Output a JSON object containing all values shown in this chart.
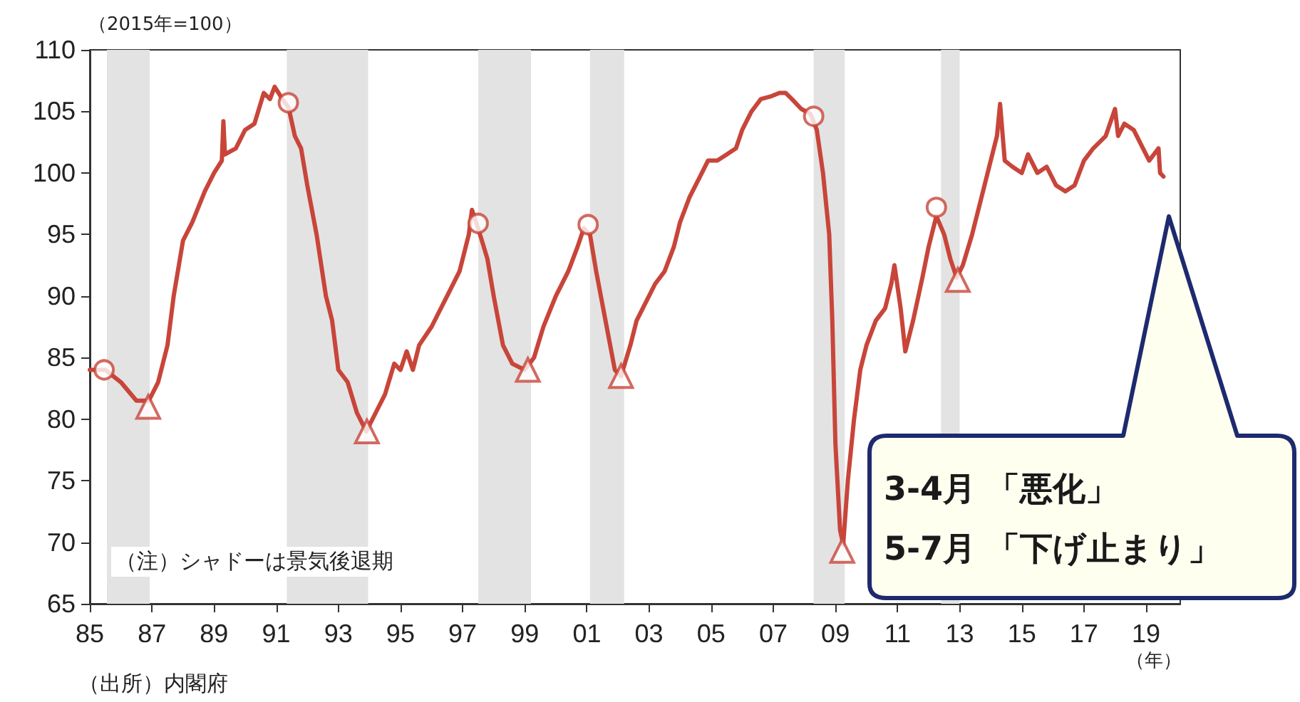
{
  "chart_data": {
    "type": "line",
    "ylabel": "（2015年=100）",
    "xlabel": "（年）",
    "xlim": [
      1985,
      2020.1
    ],
    "xticks": [
      {
        "value": 1985,
        "label": "85"
      },
      {
        "value": 1987,
        "label": "87"
      },
      {
        "value": 1989,
        "label": "89"
      },
      {
        "value": 1991,
        "label": "91"
      },
      {
        "value": 1993,
        "label": "93"
      },
      {
        "value": 1995,
        "label": "95"
      },
      {
        "value": 1997,
        "label": "97"
      },
      {
        "value": 1999,
        "label": "99"
      },
      {
        "value": 2001,
        "label": "01"
      },
      {
        "value": 2003,
        "label": "03"
      },
      {
        "value": 2005,
        "label": "05"
      },
      {
        "value": 2007,
        "label": "07"
      },
      {
        "value": 2009,
        "label": "09"
      },
      {
        "value": 2011,
        "label": "11"
      },
      {
        "value": 2013,
        "label": "13"
      },
      {
        "value": 2015,
        "label": "15"
      },
      {
        "value": 2017,
        "label": "17"
      },
      {
        "value": 2019,
        "label": "19"
      }
    ],
    "ylim": [
      65,
      110
    ],
    "yticks": [
      65,
      70,
      75,
      80,
      85,
      90,
      95,
      100,
      105,
      110
    ],
    "grid": false,
    "series": [
      {
        "color": "#c8453a",
        "marker": "none",
        "x": [
          1985.0,
          1985.5,
          1986.0,
          1986.5,
          1986.9,
          1987.2,
          1987.5,
          1987.7,
          1988.0,
          1988.3,
          1988.7,
          1989.0,
          1989.25,
          1989.3,
          1989.35,
          1989.7,
          1990.0,
          1990.3,
          1990.6,
          1990.8,
          1990.95,
          1991.2,
          1991.4,
          1991.6,
          1991.8,
          1992.0,
          1992.3,
          1992.6,
          1992.8,
          1993.0,
          1993.3,
          1993.6,
          1993.9,
          1994.2,
          1994.5,
          1994.8,
          1995.0,
          1995.2,
          1995.4,
          1995.6,
          1996.0,
          1996.5,
          1996.9,
          1997.2,
          1997.3,
          1997.5,
          1997.8,
          1998.0,
          1998.3,
          1998.6,
          1999.0,
          1999.3,
          1999.6,
          2000.0,
          2000.4,
          2000.7,
          2000.9,
          2001.1,
          2001.3,
          2001.6,
          2001.9,
          2002.1,
          2002.4,
          2002.6,
          2002.9,
          2003.2,
          2003.5,
          2003.8,
          2004.0,
          2004.3,
          2004.6,
          2004.9,
          2005.2,
          2005.5,
          2005.8,
          2006.0,
          2006.3,
          2006.6,
          2006.9,
          2007.2,
          2007.4,
          2007.6,
          2007.9,
          2008.2,
          2008.4,
          2008.6,
          2008.8,
          2008.9,
          2009.0,
          2009.15,
          2009.25,
          2009.4,
          2009.6,
          2009.8,
          2010.0,
          2010.3,
          2010.6,
          2010.8,
          2010.9,
          2011.1,
          2011.25,
          2011.5,
          2011.8,
          2012.0,
          2012.25,
          2012.5,
          2012.7,
          2012.9,
          2013.1,
          2013.4,
          2013.7,
          2014.0,
          2014.2,
          2014.3,
          2014.45,
          2014.7,
          2015.0,
          2015.2,
          2015.5,
          2015.8,
          2016.1,
          2016.4,
          2016.7,
          2017.0,
          2017.3,
          2017.7,
          2018.0,
          2018.1,
          2018.3,
          2018.6,
          2018.9,
          2019.1,
          2019.4,
          2019.45,
          2019.56
        ],
        "values": [
          84,
          84,
          83,
          81.5,
          81.5,
          83,
          86,
          90,
          94.5,
          96,
          98.5,
          100,
          101,
          104.2,
          101.5,
          102,
          103.5,
          104,
          106.5,
          106,
          107,
          106,
          105.3,
          103,
          102,
          99,
          95,
          90,
          88,
          84,
          83,
          80.5,
          79,
          80.5,
          82,
          84.5,
          84,
          85.5,
          84,
          86,
          87.5,
          90,
          92,
          95,
          97,
          95.5,
          93,
          90,
          86,
          84.5,
          84,
          85,
          87.5,
          90,
          92,
          94,
          95.5,
          95,
          92,
          88,
          84,
          83.5,
          86,
          88,
          89.5,
          91,
          92,
          94,
          96,
          98,
          99.5,
          101,
          101,
          101.5,
          102,
          103.5,
          105,
          106,
          106.2,
          106.5,
          106.5,
          106,
          105.2,
          104.8,
          103.5,
          100,
          95,
          88,
          78,
          71,
          69.8,
          75,
          80,
          84,
          86,
          88,
          89,
          91,
          92.5,
          89,
          85.5,
          88,
          91.5,
          94,
          96.5,
          95,
          93,
          91.5,
          92.5,
          95,
          98,
          101,
          103,
          105.6,
          101,
          100.5,
          100,
          101.5,
          100,
          100.5,
          99,
          98.5,
          99,
          101,
          102,
          103,
          105.2,
          103,
          104,
          103.5,
          102,
          101,
          102,
          100,
          99.7
        ]
      },
      {
        "type": "scatter",
        "color": "#c8453a",
        "marker": "circle",
        "x": [
          1985.46,
          1991.39,
          1997.5,
          2001.04,
          2008.3,
          2012.25
        ],
        "values": [
          84,
          105.7,
          95.9,
          95.8,
          104.6,
          97.2
        ]
      },
      {
        "type": "scatter",
        "color": "#c8453a",
        "marker": "triangle",
        "x": [
          1986.88,
          1993.92,
          1999.1,
          2002.1,
          2009.22,
          2012.94
        ],
        "values": [
          81,
          79,
          84,
          83.5,
          69.3,
          91.3
        ]
      }
    ],
    "bands": [
      {
        "axis": "x",
        "from": 1985.55,
        "to": 1986.93,
        "color": "#e3e3e3"
      },
      {
        "axis": "x",
        "from": 1991.34,
        "to": 1993.96,
        "color": "#e3e3e3"
      },
      {
        "axis": "x",
        "from": 1997.5,
        "to": 1999.2,
        "color": "#e3e3e3"
      },
      {
        "axis": "x",
        "from": 2001.1,
        "to": 2002.2,
        "color": "#e3e3e3"
      },
      {
        "axis": "x",
        "from": 2008.3,
        "to": 2009.3,
        "color": "#e3e3e3"
      },
      {
        "axis": "x",
        "from": 2012.4,
        "to": 2013.0,
        "color": "#e3e3e3"
      }
    ],
    "annotations": [
      "（注）シャドーは景気後退期",
      "（出所）内閣府",
      "3-4月 「悪化」",
      "5-7月 「下げ止まり」"
    ]
  }
}
